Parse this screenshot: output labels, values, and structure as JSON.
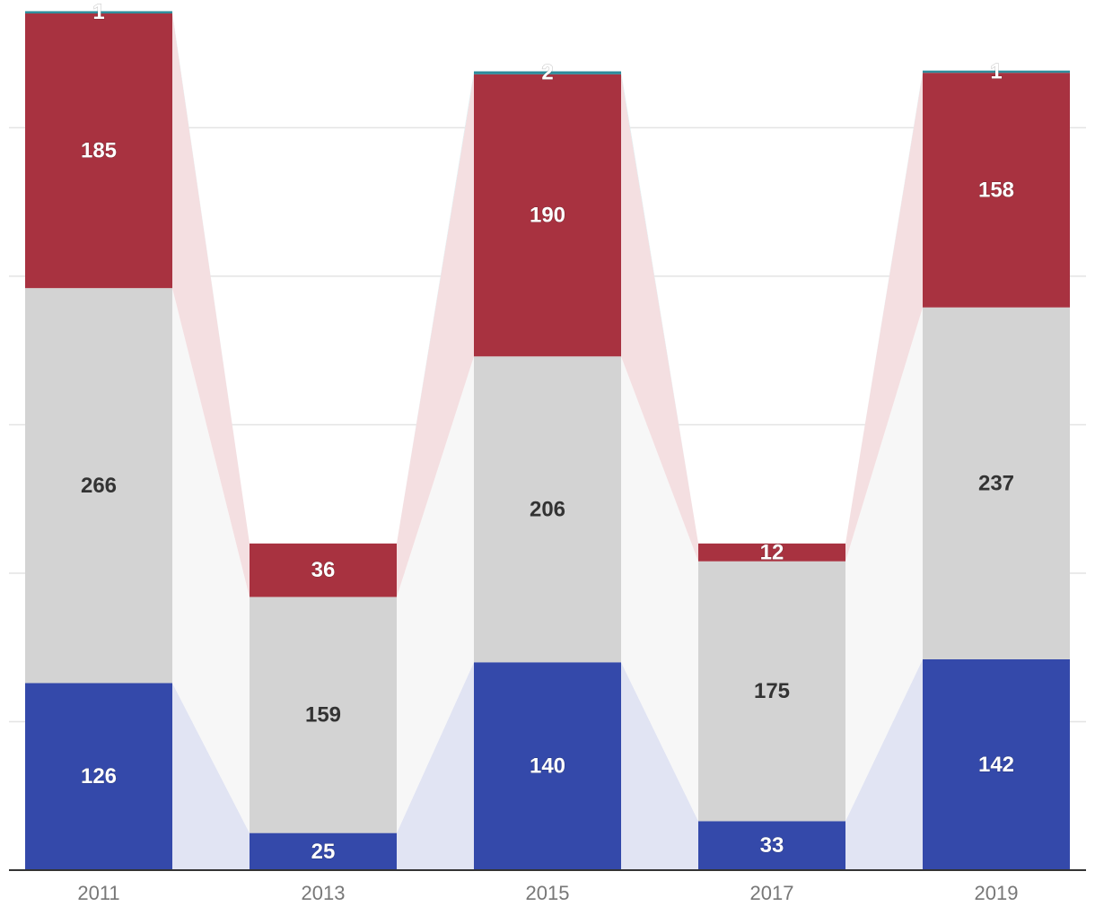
{
  "chart_data": {
    "type": "bar",
    "stacked": true,
    "categories": [
      "2011",
      "2013",
      "2015",
      "2017",
      "2019"
    ],
    "series": [
      {
        "values": [
          126,
          25,
          140,
          33,
          142
        ],
        "color": "#3449aa",
        "band_color": "#e1e4f3"
      },
      {
        "values": [
          266,
          159,
          206,
          175,
          237
        ],
        "color": "#d3d3d3",
        "band_color": "#f7f7f7"
      },
      {
        "values": [
          185,
          36,
          190,
          12,
          158
        ],
        "color": "#a83240",
        "band_color": "#f4dfe1"
      },
      {
        "values": [
          1,
          0,
          2,
          0,
          1
        ],
        "color": "#2e8b9a",
        "band_color": "#dceff2"
      }
    ],
    "ylim": [
      0,
      580
    ],
    "yticks": [
      100,
      200,
      300,
      400,
      500
    ],
    "grid": true,
    "legend": "none",
    "title": "",
    "xlabel": "",
    "ylabel": ""
  }
}
